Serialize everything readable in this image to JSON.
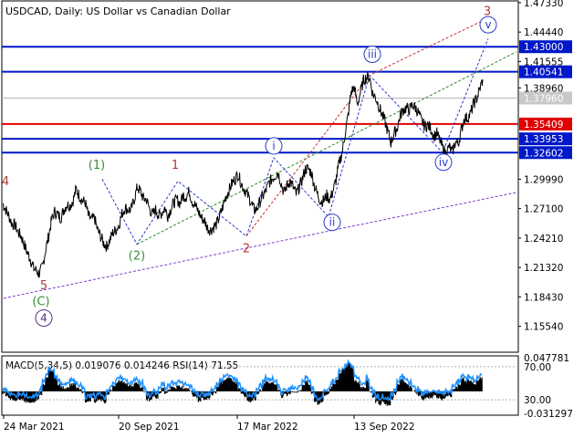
{
  "symbol": "USDCAD",
  "timeframe": "Daily",
  "description": "US Dollar vs Canadian Dollar",
  "title_full": "USDCAD, Daily:  US Dollar vs Canadian Dollar",
  "chart_data": [
    {
      "type": "line",
      "subtype": "price-chart-elliott-waves",
      "title": "USDCAD, Daily:  US Dollar vs Canadian Dollar",
      "y_axis_ticks": [
        1.4733,
        1.4444,
        1.41555,
        1.3896,
        1.35409,
        1.2999,
        1.271,
        1.2421,
        1.2132,
        1.1843,
        1.1554
      ],
      "y_axis_tick_labels": [
        "1.47330",
        "1.44440",
        "1.41555",
        "1.38960",
        "1.35409",
        "1.29990",
        "1.27100",
        "1.24210",
        "1.21320",
        "1.18430",
        "1.15540"
      ],
      "x_axis_labels": [
        "24 Mar 2021",
        "20 Sep 2021",
        "17 Mar 2022",
        "13 Sep 2022"
      ],
      "ylim": [
        1.13,
        1.475
      ],
      "grid": false,
      "series": [
        {
          "values": [
            1.276,
            1.27,
            1.264,
            1.256,
            1.255,
            1.248,
            1.244,
            1.236,
            1.228,
            1.222,
            1.213,
            1.21,
            1.207,
            1.214,
            1.23,
            1.244,
            1.26,
            1.268,
            1.265,
            1.262,
            1.27,
            1.275,
            1.274,
            1.279,
            1.29,
            1.284,
            1.279,
            1.277,
            1.264,
            1.26,
            1.262,
            1.25,
            1.244,
            1.237,
            1.234,
            1.24,
            1.247,
            1.25,
            1.255,
            1.266,
            1.272,
            1.27,
            1.27,
            1.28,
            1.292,
            1.288,
            1.281,
            1.28,
            1.271,
            1.265,
            1.27,
            1.264,
            1.267,
            1.272,
            1.264,
            1.271,
            1.277,
            1.28,
            1.276,
            1.284,
            1.283,
            1.288,
            1.278,
            1.274,
            1.268,
            1.262,
            1.259,
            1.252,
            1.25,
            1.253,
            1.256,
            1.264,
            1.273,
            1.283,
            1.289,
            1.296,
            1.3,
            1.305,
            1.296,
            1.29,
            1.285,
            1.279,
            1.271,
            1.27,
            1.277,
            1.283,
            1.288,
            1.296,
            1.3,
            1.303,
            1.307,
            1.297,
            1.286,
            1.294,
            1.298,
            1.292,
            1.285,
            1.292,
            1.3,
            1.31,
            1.31,
            1.306,
            1.293,
            1.285,
            1.278,
            1.279,
            1.284,
            1.28,
            1.288,
            1.299,
            1.315,
            1.326,
            1.345,
            1.363,
            1.386,
            1.39,
            1.373,
            1.385,
            1.397,
            1.4,
            1.4,
            1.384,
            1.38,
            1.372,
            1.364,
            1.357,
            1.346,
            1.336,
            1.345,
            1.35,
            1.362,
            1.368,
            1.37,
            1.368,
            1.373,
            1.37,
            1.365,
            1.357,
            1.352,
            1.353,
            1.35,
            1.342,
            1.345,
            1.338,
            1.33,
            1.325,
            1.332,
            1.326,
            1.336,
            1.335,
            1.348,
            1.36,
            1.36,
            1.364,
            1.374,
            1.379,
            1.388,
            1.398
          ],
          "x_start_label": "24 Mar 2021 (approx.)"
        }
      ],
      "horizontal_levels": [
        {
          "value": 1.43,
          "label": "1.43000",
          "color": "#0018c8"
        },
        {
          "value": 1.40541,
          "label": "1.40541",
          "color": "#0018c8"
        },
        {
          "value": 1.35409,
          "label": "1.35409",
          "color": "#e00000"
        },
        {
          "value": 1.33953,
          "label": "1.33953",
          "color": "#0018c8"
        },
        {
          "value": 1.32602,
          "label": "1.32602",
          "color": "#0018c8"
        }
      ],
      "current_price": {
        "value": 1.3796,
        "label": "1.37960"
      },
      "wave_labels": [
        {
          "text": "4",
          "color": "#b23a3a"
        },
        {
          "text": "5",
          "color": "#b23a3a"
        },
        {
          "text": "(C)",
          "color": "#3c8c3c"
        },
        {
          "text": "4",
          "color": "#5a2d8c",
          "circled": true
        },
        {
          "text": "(1)",
          "color": "#3c8c3c"
        },
        {
          "text": "(2)",
          "color": "#3c8c3c"
        },
        {
          "text": "1",
          "color": "#b23a3a"
        },
        {
          "text": "2",
          "color": "#b23a3a"
        },
        {
          "text": "i",
          "color": "#2a3cc8",
          "circled": true
        },
        {
          "text": "ii",
          "color": "#2a3cc8",
          "circled": true
        },
        {
          "text": "iii",
          "color": "#2a3cc8",
          "circled": true
        },
        {
          "text": "iv",
          "color": "#2a3cc8",
          "circled": true
        },
        {
          "text": "v",
          "color": "#2a3cc8",
          "circled": true
        },
        {
          "text": "3",
          "color": "#b23a3a"
        }
      ]
    },
    {
      "type": "area",
      "subtype": "macd-histogram-with-rsi",
      "title": "MACD(5,34,5) 0.019076 0.014246 RSI(14) 71.55",
      "macd_params": "MACD(5,34,5)",
      "macd_value": 0.019076,
      "signal_value": 0.014246,
      "rsi_params": "RSI(14)",
      "rsi_value": 71.55,
      "y_axis_tick_labels": [
        "0.047781",
        "70.00",
        "30.00",
        "-0.031297"
      ],
      "y_axis_ticks": [
        0.047781,
        -0.031297
      ],
      "rsi_levels": [
        70,
        30
      ],
      "ylim": [
        -0.031297,
        0.047781
      ],
      "grid": false
    }
  ]
}
